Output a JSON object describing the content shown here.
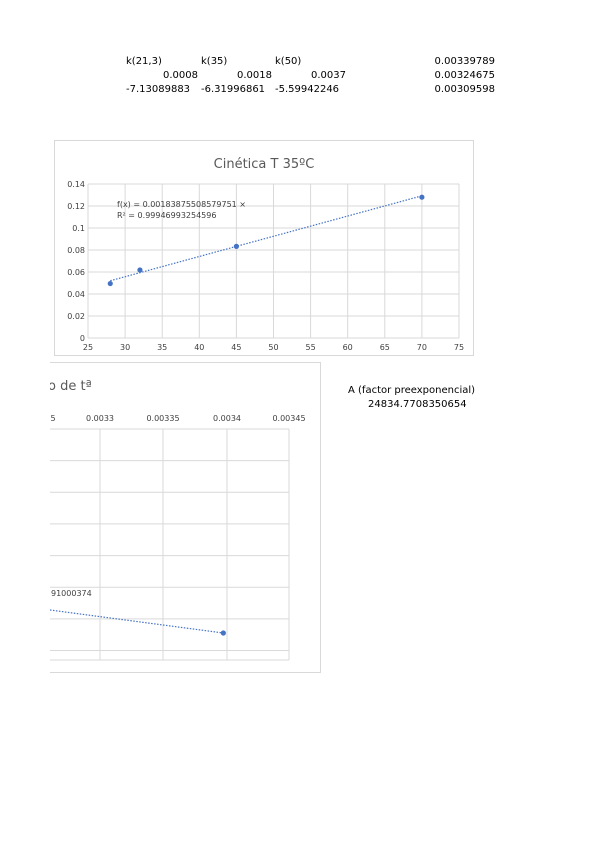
{
  "table": {
    "headers": [
      "k(21,3)",
      "k(35)",
      "k(50)"
    ],
    "rows": [
      [
        "0.0008",
        "0.0018",
        "0.0037"
      ],
      [
        "-7.13089883",
        "-6.31996861",
        "-5.59942246"
      ]
    ],
    "right_column": [
      "0.00339789",
      "0.00324675",
      "0.00309598"
    ]
  },
  "chart_data": [
    {
      "type": "scatter",
      "title": "Cinética T 35ºC",
      "x": [
        28,
        32,
        45,
        70
      ],
      "y": [
        0.0495,
        0.0618,
        0.0833,
        0.128
      ],
      "xlim": [
        25,
        75
      ],
      "ylim": [
        0,
        0.14
      ],
      "xticks": [
        "25",
        "30",
        "35",
        "40",
        "45",
        "50",
        "55",
        "60",
        "65",
        "70",
        "75"
      ],
      "yticks": [
        "0",
        "0.02",
        "0.04",
        "0.06",
        "0.08",
        "0.1",
        "0.12",
        "0.14"
      ],
      "trendline": {
        "type": "linear",
        "slope": 0.00183875508579751,
        "intercept": 0.00055
      },
      "equation": "f(x) = 0.00183875508579751 ×",
      "r2": "R² = 0.99946993254596",
      "grid": true,
      "color": "#4472c4"
    },
    {
      "type": "scatter",
      "title_fragment": "o de tª",
      "x": [
        0.00339789
      ],
      "y": [
        -7.13089883
      ],
      "xlim": [
        0.00325,
        0.00345
      ],
      "ylim": [
        -7.3,
        -5.3
      ],
      "xticks": [
        "5",
        "0.0033",
        "0.00335",
        "0.0034",
        "0.00345"
      ],
      "equation_fragment": "91000374",
      "grid": true,
      "color": "#4472c4"
    }
  ],
  "preexp": {
    "label": "A (factor preexponencial)",
    "value": "24834.7708350654"
  }
}
